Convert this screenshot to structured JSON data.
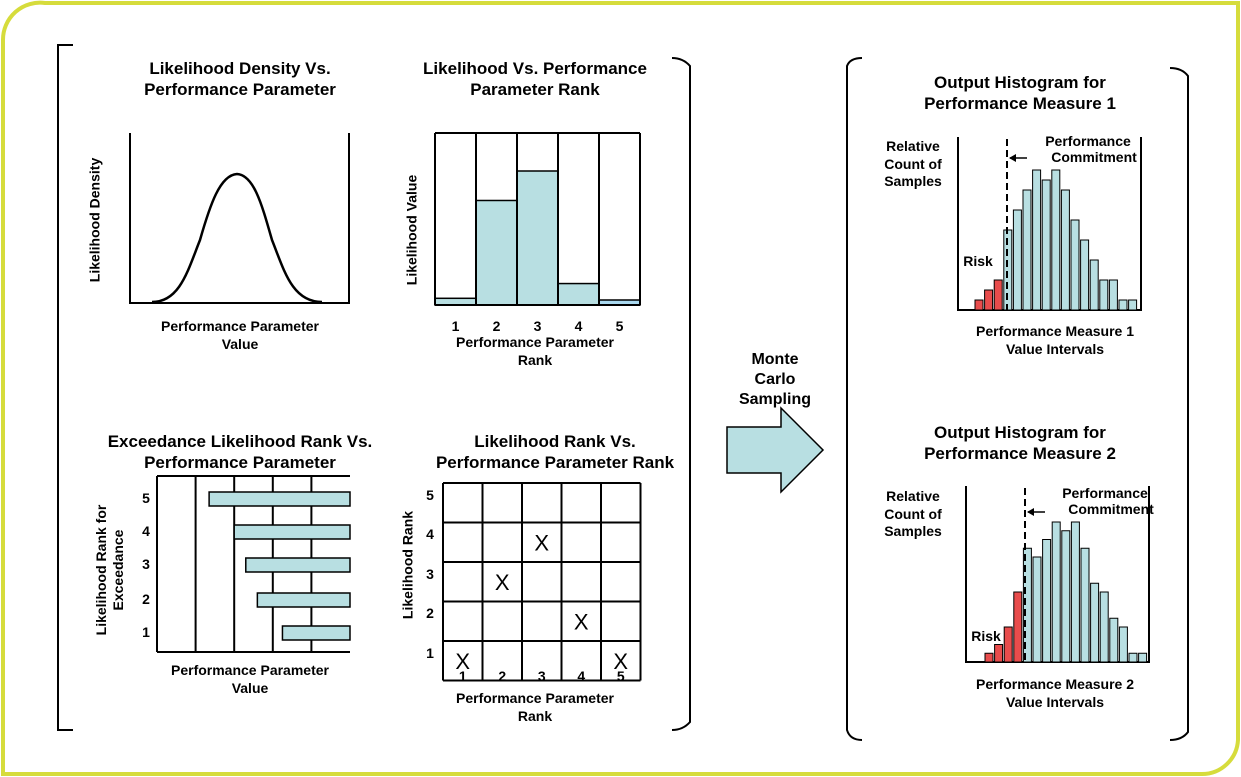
{
  "panels": {
    "density": {
      "title_l1": "Likelihood Density Vs.",
      "title_l2": "Performance Parameter",
      "ylabel": "Likelihood Density",
      "xlabel_l1": "Performance Parameter",
      "xlabel_l2": "Value"
    },
    "rank": {
      "title_l1": "Likelihood Vs. Performance",
      "title_l2": "Parameter Rank",
      "ylabel": "Likelihood Value",
      "xlabel_l1": "Performance Parameter",
      "xlabel_l2": "Rank",
      "ticks": [
        "1",
        "2",
        "3",
        "4",
        "5"
      ]
    },
    "exceedance": {
      "title_l1": "Exceedance Likelihood Rank Vs.",
      "title_l2": "Performance Parameter",
      "ylabel_l1": "Likelihood Rank for",
      "ylabel_l2": "Exceedance",
      "xlabel_l1": "Performance Parameter",
      "xlabel_l2": "Value",
      "ticks": [
        "5",
        "4",
        "3",
        "2",
        "1"
      ]
    },
    "rankmatrix": {
      "title_l1": "Likelihood Rank Vs.",
      "title_l2": "Performance Parameter Rank",
      "ylabel": "Likelihood Rank",
      "xlabel_l1": "Performance Parameter",
      "xlabel_l2": "Rank",
      "xticks": [
        "1",
        "2",
        "3",
        "4",
        "5"
      ],
      "yticks": [
        "5",
        "4",
        "3",
        "2",
        "1"
      ],
      "mark": "X"
    }
  },
  "arrow": {
    "label_l1": "Monte",
    "label_l2": "Carlo",
    "label_l3": "Sampling"
  },
  "histograms": [
    {
      "title_l1": "Output Histogram for",
      "title_l2": "Performance Measure 1",
      "ylabel_l1": "Relative",
      "ylabel_l2": "Count of",
      "ylabel_l3": "Samples",
      "commit_l1": "Performance",
      "commit_l2": "Commitment",
      "risk": "Risk",
      "xlabel_l1": "Performance Measure 1",
      "xlabel_l2": "Value Intervals"
    },
    {
      "title_l1": "Output Histogram for",
      "title_l2": "Performance Measure 2",
      "ylabel_l1": "Relative",
      "ylabel_l2": "Count of",
      "ylabel_l3": "Samples",
      "commit_l1": "Performance",
      "commit_l2": "Commitment",
      "risk": "Risk",
      "xlabel_l1": "Performance Measure 2",
      "xlabel_l2": "Value Intervals"
    }
  ],
  "chart_data": [
    {
      "type": "line",
      "shape": "bell curve",
      "title": "Likelihood Density Vs. Performance Parameter",
      "ylabel": "Likelihood Density",
      "xlabel": "Performance Parameter Value"
    },
    {
      "type": "bar",
      "title": "Likelihood Vs. Performance Parameter Rank",
      "categories": [
        "1",
        "2",
        "3",
        "4",
        "5"
      ],
      "values": [
        0.05,
        0.78,
        1.0,
        0.16,
        0.03
      ],
      "ylabel": "Likelihood Value",
      "xlabel": "Performance Parameter Rank"
    },
    {
      "type": "bar",
      "orientation": "horizontal",
      "title": "Exceedance Likelihood Rank Vs. Performance Parameter",
      "categories": [
        "5",
        "4",
        "3",
        "2",
        "1"
      ],
      "start_values": [
        0.27,
        0.4,
        0.46,
        0.52,
        0.65
      ],
      "ylabel": "Likelihood Rank for Exceedance",
      "xlabel": "Performance Parameter Value"
    },
    {
      "type": "scatter",
      "title": "Likelihood Rank Vs. Performance Parameter Rank",
      "points": [
        {
          "x": 1,
          "y": 1
        },
        {
          "x": 2,
          "y": 3
        },
        {
          "x": 3,
          "y": 4
        },
        {
          "x": 4,
          "y": 2
        },
        {
          "x": 5,
          "y": 1
        }
      ],
      "xlabel": "Performance Parameter Rank",
      "ylabel": "Likelihood Rank"
    },
    {
      "type": "bar",
      "title": "Output Histogram for Performance Measure 1",
      "values": [
        1,
        2,
        3,
        8,
        10,
        12,
        14,
        13,
        14,
        12,
        9,
        7,
        5,
        3,
        3,
        1,
        1
      ],
      "risk_bins": 3,
      "colors": {
        "risk": "#e84c4c",
        "ok": "#b8dfe2"
      }
    },
    {
      "type": "bar",
      "title": "Output Histogram for Performance Measure 2",
      "values": [
        1,
        2,
        4,
        8,
        13,
        12,
        14,
        16,
        15,
        16,
        13,
        9,
        8,
        5,
        4,
        1,
        1
      ],
      "risk_bins": 4,
      "colors": {
        "risk": "#e84c4c",
        "ok": "#b8dfe2"
      }
    }
  ],
  "colors": {
    "frame": "#d6dc3c",
    "bar_fill": "#b8dfe2",
    "risk_fill": "#e84c4c"
  }
}
